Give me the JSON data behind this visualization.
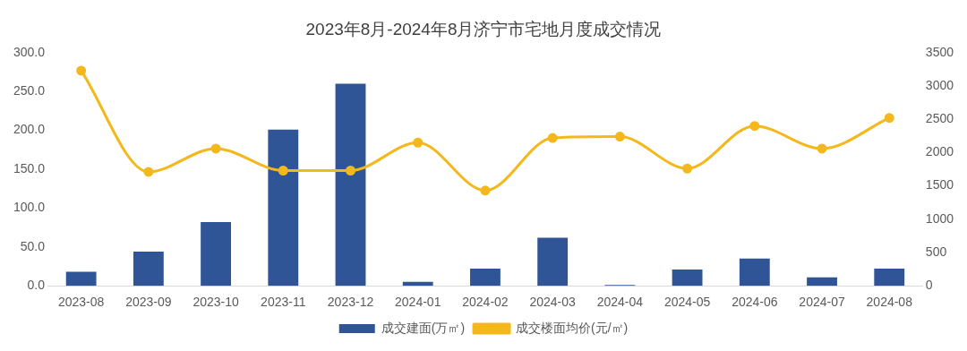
{
  "chart_data": {
    "type": "bar",
    "title": "2023年8月-2024年8月济宁市宅地月度成交情况",
    "categories": [
      "2023-08",
      "2023-09",
      "2023-10",
      "2023-11",
      "2023-12",
      "2024-01",
      "2024-02",
      "2024-03",
      "2024-04",
      "2024-05",
      "2024-06",
      "2024-07",
      "2024-08"
    ],
    "series": [
      {
        "name": "成交建面(万㎡)",
        "color": "#2f5597",
        "values": [
          18,
          44,
          82,
          201,
          260,
          5,
          22,
          62,
          1,
          21,
          35,
          11,
          22
        ]
      },
      {
        "name": "成交楼面均价(元/㎡)",
        "type": "line",
        "axis": "y2",
        "color": "#f4b81c",
        "values": [
          3230,
          1710,
          2060,
          1730,
          1730,
          2150,
          1430,
          2220,
          2240,
          1760,
          2400,
          2060,
          2520
        ]
      }
    ],
    "ylim": [
      0,
      300
    ],
    "yticks": [
      {
        "value": 0,
        "label": "0.0"
      },
      {
        "value": 50,
        "label": "50.0"
      },
      {
        "value": 100,
        "label": "100.0"
      },
      {
        "value": 150,
        "label": "150.0"
      },
      {
        "value": 200,
        "label": "200.0"
      },
      {
        "value": 250,
        "label": "250.0"
      },
      {
        "value": 300,
        "label": "300.0"
      }
    ],
    "y2lim": [
      0,
      3500
    ],
    "y2ticks": [
      0,
      500,
      1000,
      1500,
      2000,
      2500,
      3000,
      3500
    ],
    "legend": "bottom",
    "grid": false,
    "marker": "circle",
    "line_style": "solid"
  }
}
